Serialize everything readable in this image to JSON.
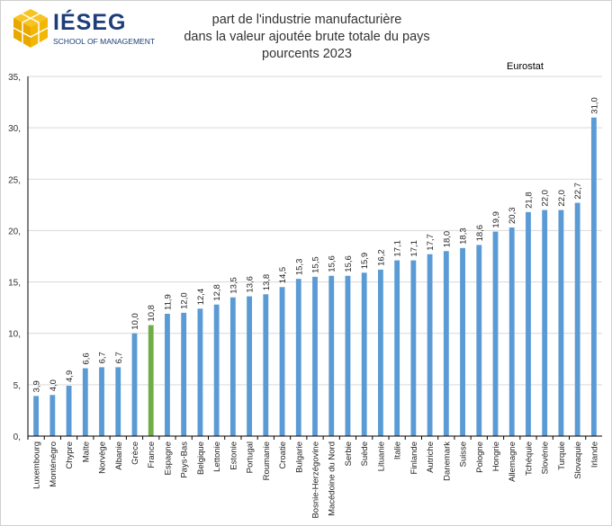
{
  "brand": {
    "name": "IÉSEG",
    "tagline": "SCHOOL OF MANAGEMENT",
    "colors": {
      "navy": "#1d3d7a",
      "gold": "#f2b705"
    }
  },
  "colors": {
    "bar": "#5b9bd5",
    "highlight": "#70ad47",
    "grid": "#d9d9d9",
    "axis": "#000000"
  },
  "chart_data": {
    "type": "bar",
    "title_lines": [
      "part de l'industrie manufacturière",
      "dans la valeur ajoutée brute totale du pays",
      "pourcents 2023"
    ],
    "source": "Eurostat",
    "categories": [
      "Luxembourg",
      "Monténégro",
      "Chypre",
      "Malte",
      "Norvège",
      "Albanie",
      "Grèce",
      "France",
      "Espagne",
      "Pays-Bas",
      "Belgique",
      "Lettonie",
      "Estonie",
      "Portugal",
      "Roumanie",
      "Croatie",
      "Bulgarie",
      "Bosnie-Herzégovine",
      "Macédoine du Nord",
      "Serbie",
      "Suède",
      "Lituanie",
      "Italie",
      "Finlande",
      "Autriche",
      "Danemark",
      "Suisse",
      "Pologne",
      "Hongrie",
      "Allemagne",
      "Tchéquie",
      "Slovénie",
      "Turquie",
      "Slovaquie",
      "Irlande"
    ],
    "values": [
      3.9,
      4.0,
      4.9,
      6.6,
      6.7,
      6.7,
      10.0,
      10.8,
      11.9,
      12.0,
      12.4,
      12.8,
      13.5,
      13.6,
      13.8,
      14.5,
      15.3,
      15.5,
      15.6,
      15.6,
      15.9,
      16.2,
      17.1,
      17.1,
      17.7,
      18.0,
      18.3,
      18.6,
      19.9,
      20.3,
      21.8,
      22.0,
      22.0,
      22.7,
      31.0
    ],
    "value_labels": [
      "3,9",
      "4,0",
      "4,9",
      "6,6",
      "6,7",
      "6,7",
      "10,0",
      "10,8",
      "11,9",
      "12,0",
      "12,4",
      "12,8",
      "13,5",
      "13,6",
      "13,8",
      "14,5",
      "15,3",
      "15,5",
      "15,6",
      "15,6",
      "15,9",
      "16,2",
      "17,1",
      "17,1",
      "17,7",
      "18,0",
      "18,3",
      "18,6",
      "19,9",
      "20,3",
      "21,8",
      "22,0",
      "22,0",
      "22,7",
      "31,0"
    ],
    "highlight": "France",
    "ylim": [
      0,
      35
    ],
    "yticks": [
      0,
      5,
      10,
      15,
      20,
      25,
      30,
      35
    ],
    "ytick_labels": [
      "0,",
      "5,",
      "10,",
      "15,",
      "20,",
      "25,",
      "30,",
      "35,"
    ],
    "grid": true,
    "xlabel": "",
    "ylabel": ""
  }
}
